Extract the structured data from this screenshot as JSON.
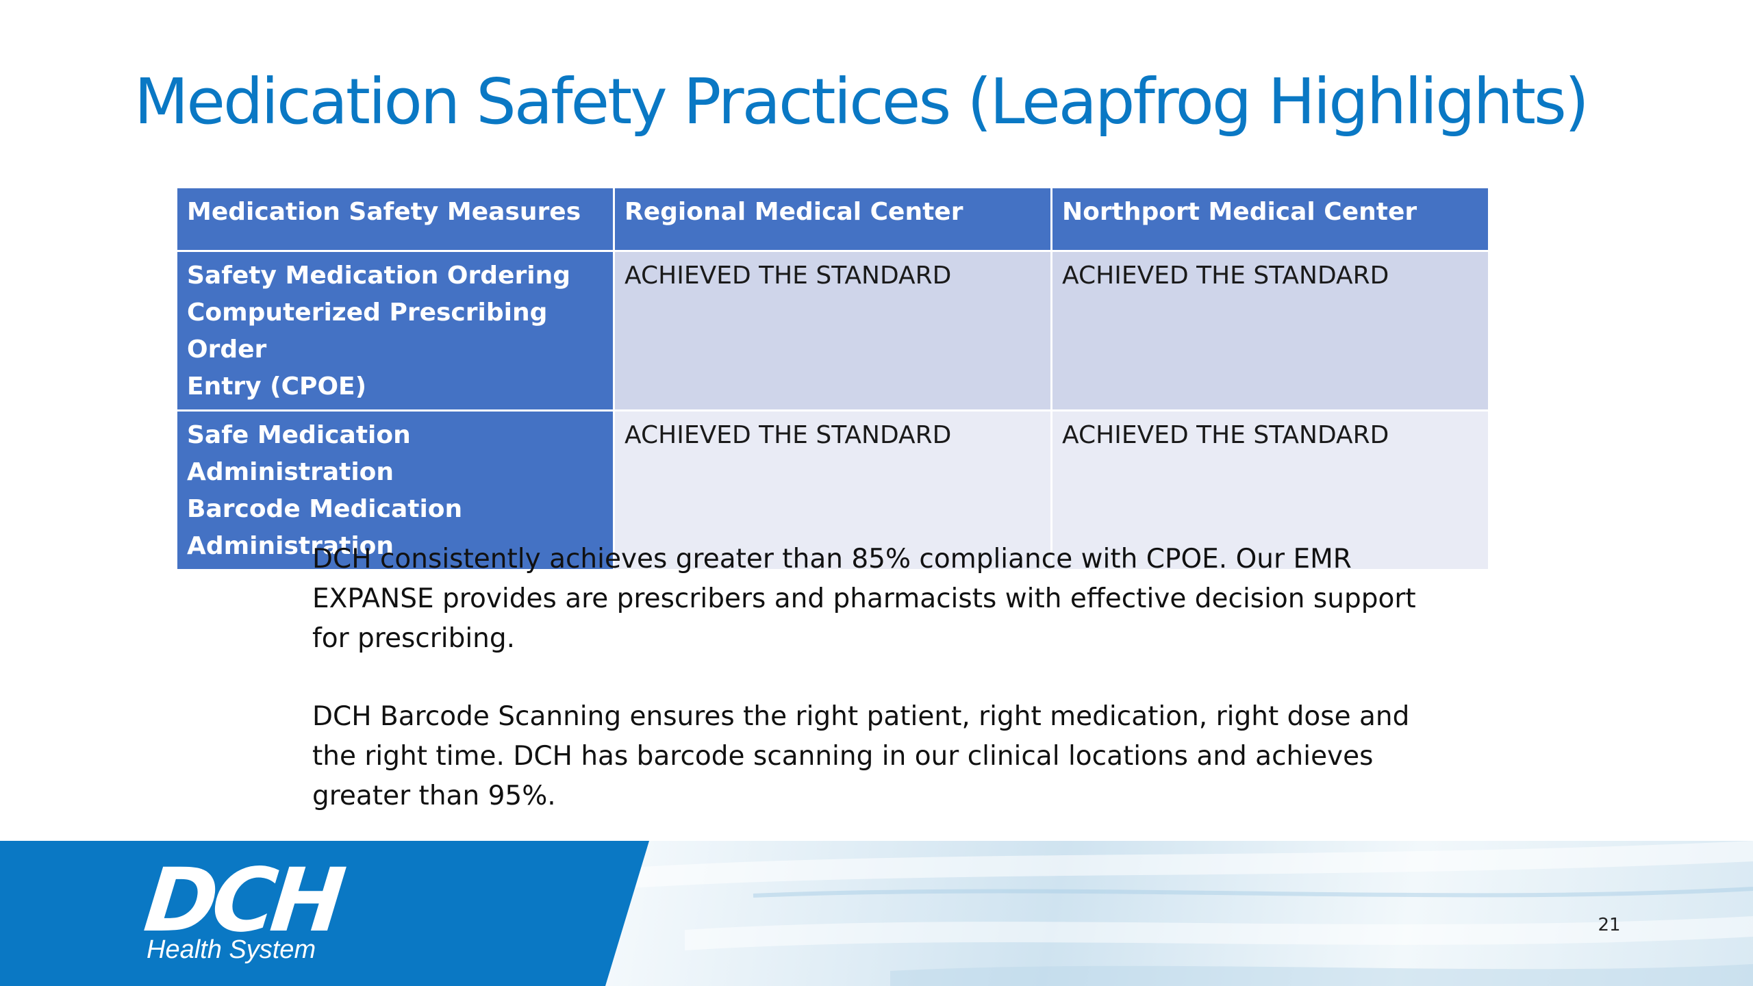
{
  "slide": {
    "title": "Medication Safety Practices (Leapfrog Highlights)",
    "page_number": "21"
  },
  "table": {
    "headers": [
      "Medication Safety Measures",
      "Regional Medical Center",
      "Northport Medical Center"
    ],
    "rows": [
      {
        "measure": [
          "Safety Medication Ordering",
          "Computerized Prescribing Order",
          "Entry (CPOE)"
        ],
        "regional": "ACHIEVED THE STANDARD",
        "northport": "ACHIEVED THE STANDARD"
      },
      {
        "measure": [
          "Safe Medication Administration",
          "Barcode Medication",
          "Administration"
        ],
        "regional": "ACHIEVED THE STANDARD",
        "northport": "ACHIEVED THE STANDARD"
      }
    ]
  },
  "notes": [
    "DCH consistently achieves greater than 85% compliance with CPOE.  Our EMR EXPANSE provides are prescribers and pharmacists with effective decision support for prescribing.",
    "DCH Barcode Scanning ensures the right patient, right medication, right dose and the right time.  DCH has barcode scanning in our clinical locations and achieves greater than 95%."
  ],
  "logo": {
    "mark": "DCH",
    "subtitle": "Health System"
  },
  "colors": {
    "title": "#0a78c4",
    "header_fill": "#4472c4",
    "row_a_fill": "#cfd5ea",
    "row_b_fill": "#e9ebf5",
    "footer_blue": "#0a78c4"
  }
}
